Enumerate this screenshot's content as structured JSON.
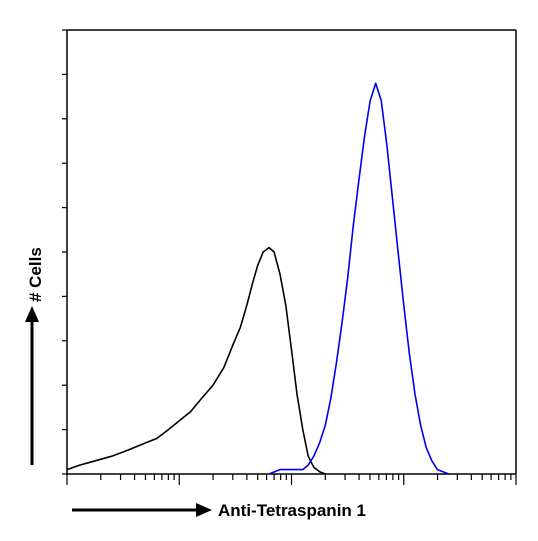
{
  "chart_data": {
    "type": "line",
    "xlabel": "Anti-Tetraspanin 1",
    "ylabel": "# Cells",
    "x_scale": "log",
    "xlim": [
      1,
      10000
    ],
    "ylim": [
      0,
      100
    ],
    "grid": false,
    "legend": "none",
    "colors": {
      "axis": "#000000",
      "control": "#000000",
      "stained": "#0000ee"
    },
    "series": [
      {
        "color": "#000000",
        "x": [
          1,
          1.3,
          1.8,
          2.5,
          3.2,
          4,
          5,
          6.3,
          8,
          10,
          12.6,
          15.8,
          20,
          25,
          30,
          35,
          40,
          45,
          50,
          56,
          63,
          70,
          79,
          89,
          100,
          112,
          126,
          141,
          158,
          178,
          200
        ],
        "y": [
          1,
          2,
          3,
          4,
          5,
          6,
          7,
          8,
          10,
          12,
          14,
          17,
          20,
          24,
          29,
          33,
          38,
          43,
          47,
          50,
          51,
          50,
          45,
          38,
          28,
          18,
          10,
          4,
          1.5,
          0.5,
          0
        ]
      },
      {
        "color": "#0000ee",
        "x": [
          63,
          79,
          100,
          126,
          141,
          158,
          178,
          200,
          224,
          251,
          282,
          316,
          355,
          398,
          447,
          501,
          562,
          631,
          708,
          794,
          891,
          1000,
          1122,
          1259,
          1413,
          1585,
          1778,
          1995,
          2239,
          2512
        ],
        "y": [
          0,
          1,
          1,
          1,
          2,
          4,
          7,
          11,
          17,
          25,
          34,
          44,
          56,
          66,
          76,
          84,
          88,
          84,
          74,
          62,
          50,
          38,
          27,
          18,
          11,
          6,
          3,
          1,
          0.5,
          0
        ]
      }
    ]
  }
}
